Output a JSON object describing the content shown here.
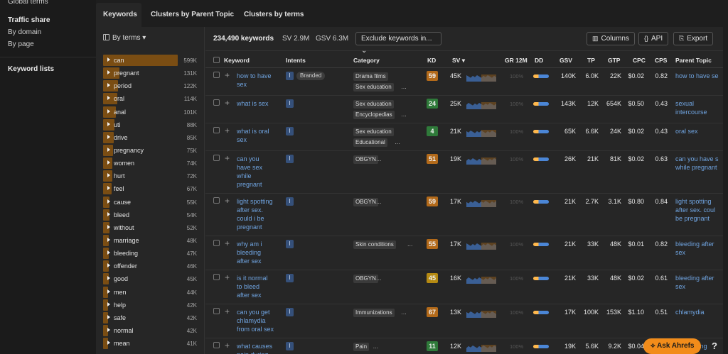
{
  "leftnav": {
    "global_terms": "Global terms",
    "traffic_share": "Traffic share",
    "by_domain": "By domain",
    "by_page": "By page",
    "keyword_lists": "Keyword lists"
  },
  "tabs": [
    "Keywords",
    "Clusters by Parent Topic",
    "Clusters by terms"
  ],
  "termbar": {
    "heading": "By terms",
    "terms": [
      {
        "label": "can",
        "count": "599K",
        "fill": 1.0
      },
      {
        "label": "pregnant",
        "count": "131K",
        "fill": 0.22
      },
      {
        "label": "period",
        "count": "122K",
        "fill": 0.2
      },
      {
        "label": "oral",
        "count": "114K",
        "fill": 0.19
      },
      {
        "label": "anal",
        "count": "101K",
        "fill": 0.17
      },
      {
        "label": "uti",
        "count": "88K",
        "fill": 0.15
      },
      {
        "label": "drive",
        "count": "85K",
        "fill": 0.14
      },
      {
        "label": "pregnancy",
        "count": "75K",
        "fill": 0.13
      },
      {
        "label": "women",
        "count": "74K",
        "fill": 0.12
      },
      {
        "label": "hurt",
        "count": "72K",
        "fill": 0.12
      },
      {
        "label": "feel",
        "count": "67K",
        "fill": 0.11
      },
      {
        "label": "cause",
        "count": "55K",
        "fill": 0.09
      },
      {
        "label": "bleed",
        "count": "54K",
        "fill": 0.09
      },
      {
        "label": "without",
        "count": "52K",
        "fill": 0.09
      },
      {
        "label": "marriage",
        "count": "48K",
        "fill": 0.08
      },
      {
        "label": "bleeding",
        "count": "47K",
        "fill": 0.08
      },
      {
        "label": "offender",
        "count": "46K",
        "fill": 0.08
      },
      {
        "label": "good",
        "count": "45K",
        "fill": 0.08
      },
      {
        "label": "men",
        "count": "44K",
        "fill": 0.07
      },
      {
        "label": "help",
        "count": "42K",
        "fill": 0.07
      },
      {
        "label": "safe",
        "count": "42K",
        "fill": 0.07
      },
      {
        "label": "normal",
        "count": "42K",
        "fill": 0.07
      },
      {
        "label": "mean",
        "count": "41K",
        "fill": 0.07
      }
    ]
  },
  "toolbar": {
    "keyword_count": "234,490 keywords",
    "sv": "SV 2.9M",
    "gsv": "GSV 6.3M",
    "exclude": "Exclude keywords in...",
    "columns": "Columns",
    "api": "API",
    "export": "Export"
  },
  "columns": [
    "Keyword",
    "Intents",
    "Category",
    "KD",
    "SV",
    "GR 12M",
    "DD",
    "GSV",
    "TP",
    "GTP",
    "CPC",
    "CPS",
    "Parent Topic"
  ],
  "rows": [
    {
      "keyword": [
        "how to have",
        "sex"
      ],
      "intents": [
        "I"
      ],
      "branded": "Branded",
      "categories": [
        "Drama films",
        "Sex education"
      ],
      "more": true,
      "kd": "59",
      "sv": "45K",
      "gr": "100%",
      "gsv": "140K",
      "tp": "6.0K",
      "gtp": "22K",
      "cpc": "$0.02",
      "cps": "0.82",
      "parent": [
        "how to have se"
      ]
    },
    {
      "keyword": [
        "what is sex"
      ],
      "intents": [
        "I"
      ],
      "categories": [
        "Sex education",
        "Encyclopedias"
      ],
      "more": true,
      "kd": "24",
      "sv": "25K",
      "gr": "100%",
      "gsv": "143K",
      "tp": "12K",
      "gtp": "654K",
      "cpc": "$0.50",
      "cps": "0.43",
      "parent": [
        "sexual",
        "intercourse"
      ]
    },
    {
      "keyword": [
        "what is oral",
        "sex"
      ],
      "intents": [
        "I"
      ],
      "categories": [
        "Sex education",
        "Educational"
      ],
      "more": true,
      "kd": "4",
      "sv": "21K",
      "gr": "100%",
      "gsv": "65K",
      "tp": "6.6K",
      "gtp": "24K",
      "cpc": "$0.02",
      "cps": "0.43",
      "parent": [
        "oral sex"
      ]
    },
    {
      "keyword": [
        "can you",
        "have sex",
        "while",
        "pregnant"
      ],
      "intents": [
        "I"
      ],
      "categories": [
        "OBGYN"
      ],
      "more": true,
      "kd": "51",
      "sv": "19K",
      "gr": "100%",
      "gsv": "26K",
      "tp": "21K",
      "gtp": "81K",
      "cpc": "$0.02",
      "cps": "0.63",
      "parent": [
        "can you have s",
        "while pregnant"
      ]
    },
    {
      "keyword": [
        "light spotting",
        "after sex.",
        "could i be",
        "pregnant"
      ],
      "intents": [
        "I"
      ],
      "categories": [
        "OBGYN"
      ],
      "more": true,
      "kd": "59",
      "sv": "17K",
      "gr": "100%",
      "gsv": "21K",
      "tp": "2.7K",
      "gtp": "3.1K",
      "cpc": "$0.80",
      "cps": "0.84",
      "parent": [
        "light spotting",
        "after sex. coul",
        "be pregnant"
      ]
    },
    {
      "keyword": [
        "why am i",
        "bleeding",
        "after sex"
      ],
      "intents": [
        "I"
      ],
      "categories": [
        "Skin conditions"
      ],
      "more": true,
      "kd": "55",
      "sv": "17K",
      "gr": "100%",
      "gsv": "21K",
      "tp": "33K",
      "gtp": "48K",
      "cpc": "$0.01",
      "cps": "0.82",
      "parent": [
        "bleeding after",
        "sex"
      ]
    },
    {
      "keyword": [
        "is it normal",
        "to bleed",
        "after sex"
      ],
      "intents": [
        "I"
      ],
      "categories": [
        "OBGYN"
      ],
      "more": true,
      "kd": "45",
      "sv": "16K",
      "gr": "100%",
      "gsv": "21K",
      "tp": "33K",
      "gtp": "48K",
      "cpc": "$0.02",
      "cps": "0.61",
      "parent": [
        "bleeding after",
        "sex"
      ]
    },
    {
      "keyword": [
        "can you get",
        "chlamydia",
        "from oral sex"
      ],
      "intents": [
        "I"
      ],
      "categories": [
        "Immunizations"
      ],
      "more": true,
      "kd": "67",
      "sv": "13K",
      "gr": "100%",
      "gsv": "17K",
      "tp": "100K",
      "gtp": "153K",
      "cpc": "$1.10",
      "cps": "0.51",
      "parent": [
        "chlamydia"
      ]
    },
    {
      "keyword": [
        "what causes",
        "pain during"
      ],
      "intents": [
        "I"
      ],
      "categories": [
        "Pain"
      ],
      "more": true,
      "kd": "11",
      "sv": "12K",
      "gr": "100%",
      "gsv": "19K",
      "tp": "5.6K",
      "gtp": "9.2K",
      "cpc": "$0.04",
      "cps": "0.77",
      "parent": [
        "pain during"
      ]
    }
  ],
  "kd_colors": {
    "low": "#2f7a3a",
    "mid": "#b58a12",
    "high": "#b36a1a"
  },
  "ask_button": "Ask Ahrefs",
  "help": "?"
}
